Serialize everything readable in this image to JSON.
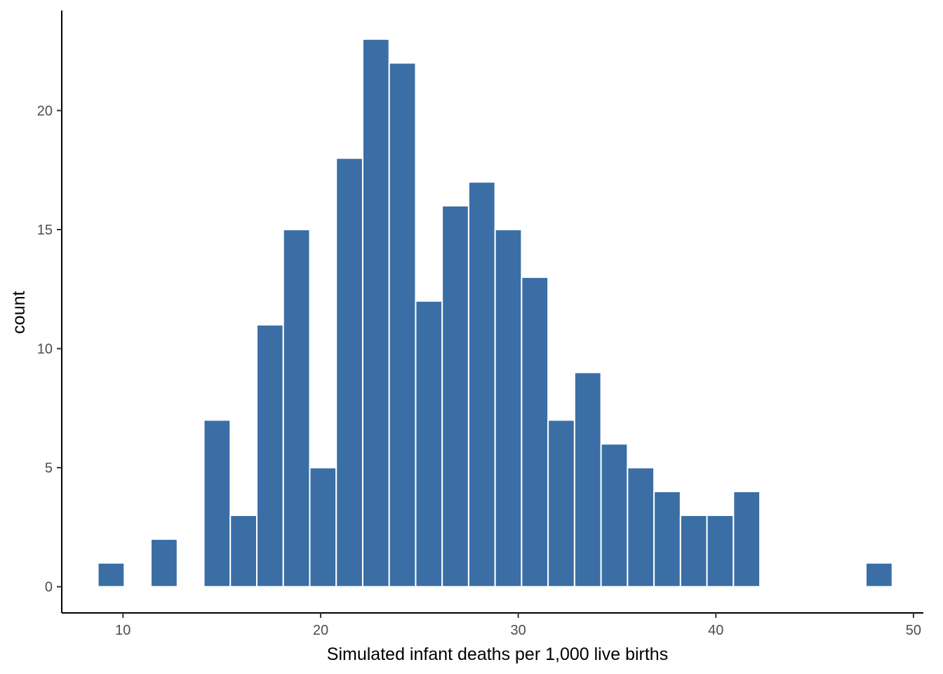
{
  "chart_data": {
    "type": "bar",
    "subtype": "histogram",
    "title": "",
    "xlabel": "Simulated infant deaths per 1,000 live births",
    "ylabel": "count",
    "bin_width": 1.34,
    "bins": [
      {
        "center": 9.4,
        "count": 1
      },
      {
        "center": 10.74,
        "count": 0
      },
      {
        "center": 12.08,
        "count": 2
      },
      {
        "center": 13.42,
        "count": 0
      },
      {
        "center": 14.76,
        "count": 7
      },
      {
        "center": 16.1,
        "count": 3
      },
      {
        "center": 17.44,
        "count": 11
      },
      {
        "center": 18.78,
        "count": 15
      },
      {
        "center": 20.12,
        "count": 5
      },
      {
        "center": 21.46,
        "count": 18
      },
      {
        "center": 22.8,
        "count": 23
      },
      {
        "center": 24.14,
        "count": 22
      },
      {
        "center": 25.48,
        "count": 12
      },
      {
        "center": 26.82,
        "count": 16
      },
      {
        "center": 28.16,
        "count": 17
      },
      {
        "center": 29.5,
        "count": 15
      },
      {
        "center": 30.84,
        "count": 13
      },
      {
        "center": 32.18,
        "count": 7
      },
      {
        "center": 33.52,
        "count": 9
      },
      {
        "center": 34.86,
        "count": 6
      },
      {
        "center": 36.2,
        "count": 5
      },
      {
        "center": 37.54,
        "count": 4
      },
      {
        "center": 38.88,
        "count": 3
      },
      {
        "center": 40.22,
        "count": 3
      },
      {
        "center": 41.56,
        "count": 4
      },
      {
        "center": 42.9,
        "count": 0
      },
      {
        "center": 44.24,
        "count": 0
      },
      {
        "center": 45.58,
        "count": 0
      },
      {
        "center": 46.92,
        "count": 0
      },
      {
        "center": 48.26,
        "count": 1
      }
    ],
    "xlim": [
      6.9,
      50.5
    ],
    "ylim": [
      -1.1,
      24.2
    ],
    "xticks": [
      10,
      20,
      30,
      40,
      50
    ],
    "yticks": [
      0,
      5,
      10,
      15,
      20
    ],
    "bar_color": "#3a6ea5",
    "bar_edge_color": "#ffffff",
    "grid": false,
    "legend": "none"
  }
}
